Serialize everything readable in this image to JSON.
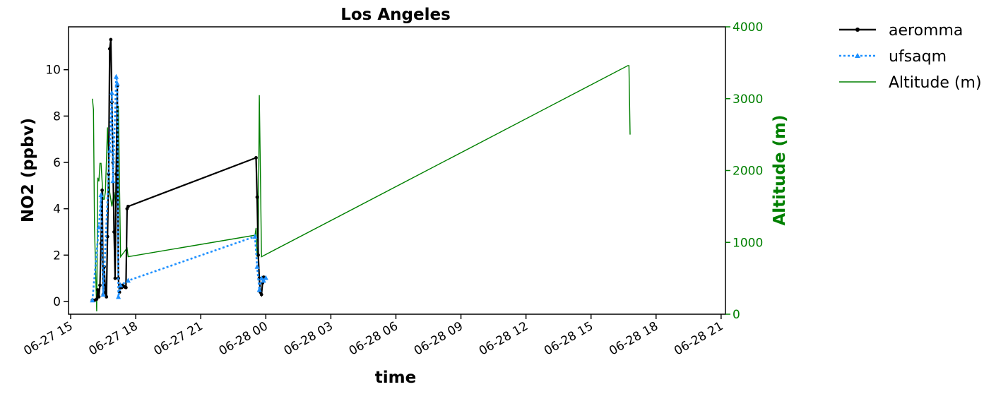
{
  "chart_data": {
    "type": "line",
    "title": "Los Angeles",
    "xlabel": "time",
    "ylabel": "NO2 (ppbv)",
    "y2label": "Altitude (m)",
    "x_ticks": [
      "06-27 15",
      "06-27 18",
      "06-27 21",
      "06-28 00",
      "06-28 03",
      "06-28 06",
      "06-28 09",
      "06-28 12",
      "06-28 15",
      "06-28 18",
      "06-28 21"
    ],
    "x_range_hours": [
      14.9,
      45.2
    ],
    "x_unit": "hours since 06-27 00:00",
    "ylim": [
      -0.55,
      11.85
    ],
    "y_ticks": [
      "0",
      "2",
      "4",
      "6",
      "8",
      "10"
    ],
    "y2lim": [
      0,
      4000
    ],
    "y2_ticks": [
      "0",
      "1000",
      "2000",
      "3000",
      "4000"
    ],
    "legend_position": "outside top-right",
    "colors": {
      "aeromma": "#000000",
      "ufsaqm": "#1e90ff",
      "altitude": "#008000",
      "y2axis": "#008000"
    },
    "series": [
      {
        "name": "aeromma",
        "axis": "left",
        "style": "solid-star",
        "x": [
          16.3,
          16.4,
          16.45,
          16.5,
          16.55,
          16.6,
          16.65,
          16.7,
          16.75,
          16.8,
          16.85,
          16.9,
          16.95,
          17.0,
          17.05,
          17.1,
          17.15,
          17.2,
          17.25,
          17.3,
          17.35,
          17.4,
          17.45,
          17.5,
          17.55,
          17.6,
          17.65,
          23.55,
          23.6,
          23.65,
          23.7,
          23.75,
          23.8,
          23.85,
          23.9,
          16.0,
          16.1,
          16.2,
          16.25,
          16.35
        ],
        "y": [
          0.2,
          2.5,
          4.8,
          0.3,
          1.5,
          0.4,
          0.2,
          2.8,
          5.5,
          10.9,
          11.3,
          8.6,
          6.0,
          3.0,
          1.0,
          5.5,
          9.3,
          1.0,
          0.4,
          0.7,
          0.6,
          0.7,
          0.65,
          0.62,
          0.6,
          4.0,
          4.1,
          6.2,
          4.5,
          2.0,
          1.0,
          0.4,
          0.3,
          0.8,
          1.05,
          0.05,
          0.05,
          0.1,
          0.5,
          0.7
        ]
      },
      {
        "name": "ufsaqm",
        "axis": "left",
        "style": "dotted-triangle",
        "x": [
          16.0,
          16.3,
          16.4,
          16.5,
          16.8,
          16.9,
          16.95,
          17.1,
          17.15,
          17.2,
          17.3,
          17.65,
          23.5,
          23.6,
          23.7,
          23.8,
          23.9,
          24.0
        ],
        "y": [
          0.05,
          3.2,
          4.6,
          0.3,
          6.5,
          9.0,
          5.2,
          9.7,
          9.4,
          0.2,
          0.7,
          0.9,
          2.8,
          1.5,
          0.5,
          1.0,
          0.9,
          1.02
        ]
      },
      {
        "name": "Altitude (m)",
        "axis": "right",
        "style": "solid-thin",
        "x": [
          16.0,
          16.05,
          16.1,
          16.2,
          16.25,
          16.3,
          16.35,
          16.4,
          16.5,
          16.55,
          16.6,
          16.7,
          16.8,
          16.9,
          17.0,
          17.1,
          17.15,
          17.2,
          17.3,
          17.35,
          17.4,
          17.45,
          17.5,
          17.55,
          17.6,
          17.65,
          23.5,
          23.55,
          23.6,
          23.65,
          23.7,
          23.75,
          23.8,
          40.7,
          40.75,
          40.8
        ],
        "y": [
          3000,
          2850,
          1200,
          40,
          1900,
          1850,
          2100,
          2100,
          1600,
          1600,
          1700,
          2600,
          1700,
          1500,
          1700,
          1500,
          2000,
          2900,
          800,
          820,
          840,
          860,
          880,
          900,
          920,
          800,
          1100,
          1200,
          800,
          1000,
          3050,
          2000,
          800,
          3460,
          3460,
          2500
        ]
      }
    ]
  }
}
